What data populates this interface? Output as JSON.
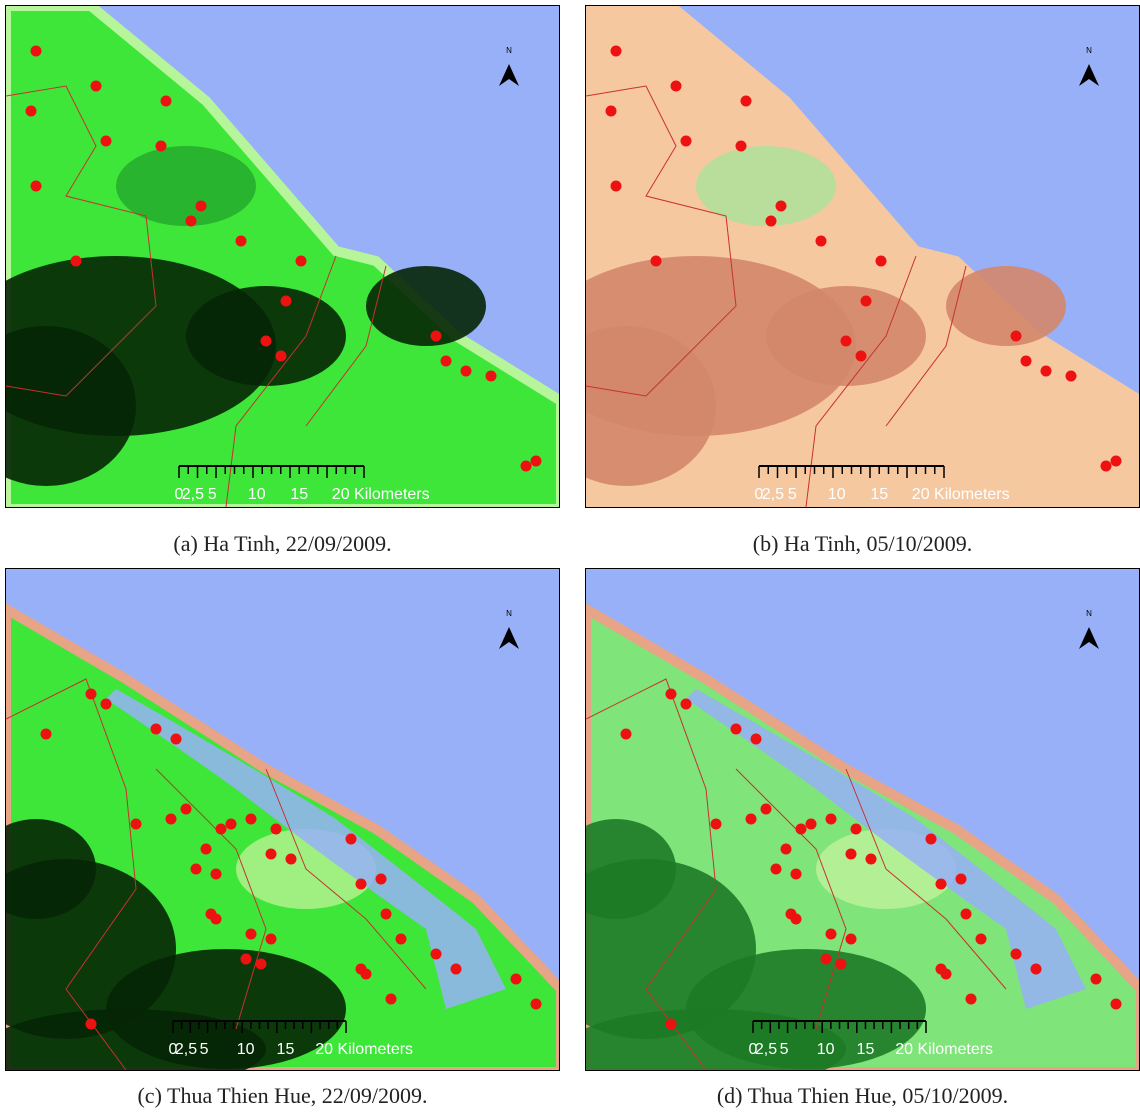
{
  "panels": [
    {
      "caption": "(a) Ha Tinh, 22/09/2009.",
      "north": "N",
      "scale_labels": [
        "0",
        "2,5",
        "5",
        "10",
        "15",
        "20 Kilometers"
      ]
    },
    {
      "caption": "(b) Ha Tinh, 05/10/2009.",
      "north": "N",
      "scale_labels": [
        "0",
        "2,5",
        "5",
        "10",
        "15",
        "20 Kilometers"
      ]
    },
    {
      "caption": "(c) Thua Thien Hue, 22/09/2009.",
      "north": "N",
      "scale_labels": [
        "0",
        "2,5",
        "5",
        "10",
        "15",
        "20 Kilometers"
      ]
    },
    {
      "caption": "(d) Thua Thien Hue, 05/10/2009.",
      "north": "N",
      "scale_labels": [
        "0",
        "2,5",
        "5",
        "10",
        "15",
        "20 Kilometers"
      ]
    }
  ]
}
